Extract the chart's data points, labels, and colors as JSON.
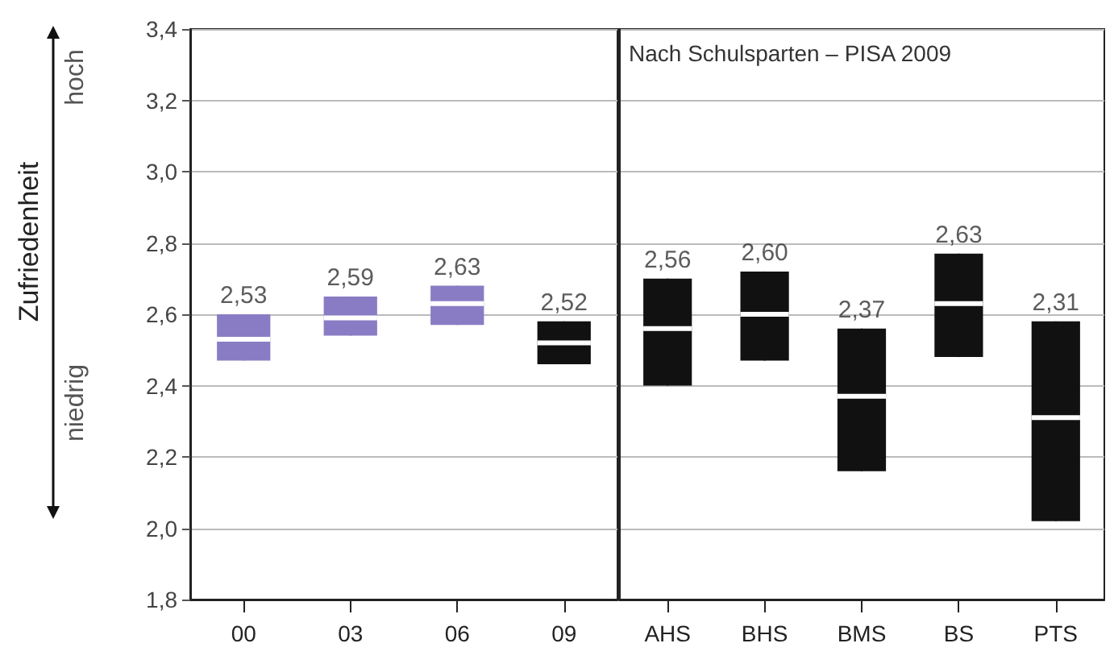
{
  "chart_data": [
    {
      "type": "box",
      "ylabel": "Zufriedenheit",
      "categories": [
        "00",
        "03",
        "06",
        "09"
      ],
      "boxes": [
        {
          "low": 2.47,
          "q1": 2.47,
          "median": 2.53,
          "q3": 2.6,
          "high": 2.6
        },
        {
          "low": 2.54,
          "q1": 2.54,
          "median": 2.59,
          "q3": 2.65,
          "high": 2.65
        },
        {
          "low": 2.57,
          "q1": 2.57,
          "median": 2.63,
          "q3": 2.68,
          "high": 2.68
        },
        {
          "low": 2.46,
          "q1": 2.46,
          "median": 2.52,
          "q3": 2.58,
          "high": 2.58
        }
      ],
      "colors": [
        "#8a7cc4",
        "#8a7cc4",
        "#8a7cc4",
        "#111111"
      ],
      "ylim": [
        1.8,
        3.4
      ],
      "yticks": [
        {
          "value": 1.8,
          "label": "1,8"
        },
        {
          "value": 2.0,
          "label": "2,0"
        },
        {
          "value": 2.2,
          "label": "2,2"
        },
        {
          "value": 2.4,
          "label": "2,4"
        },
        {
          "value": 2.6,
          "label": "2,6"
        },
        {
          "value": 2.8,
          "label": "2,8"
        },
        {
          "value": 3.0,
          "label": "3,0"
        },
        {
          "value": 3.2,
          "label": "3,2"
        },
        {
          "value": 3.4,
          "label": "3,4"
        }
      ],
      "grid": "y",
      "annotations": [
        "hoch",
        "niedrig",
        {
          "text": "2,53",
          "x": "00",
          "y": 2.6
        },
        {
          "text": "2,59",
          "x": "03",
          "y": 2.65
        },
        {
          "text": "2,63",
          "x": "06",
          "y": 2.68
        },
        {
          "text": "2,52",
          "x": "09",
          "y": 2.58
        }
      ]
    },
    {
      "type": "box",
      "title": "Nach Schulsparten – PISA 2009",
      "categories": [
        "AHS",
        "BHS",
        "BMS",
        "BS",
        "PTS"
      ],
      "boxes": [
        {
          "low": 2.4,
          "q1": 2.4,
          "median": 2.56,
          "q3": 2.7,
          "high": 2.7
        },
        {
          "low": 2.47,
          "q1": 2.47,
          "median": 2.6,
          "q3": 2.72,
          "high": 2.72
        },
        {
          "low": 2.16,
          "q1": 2.16,
          "median": 2.37,
          "q3": 2.56,
          "high": 2.56
        },
        {
          "low": 2.48,
          "q1": 2.48,
          "median": 2.63,
          "q3": 2.77,
          "high": 2.77
        },
        {
          "low": 2.02,
          "q1": 2.02,
          "median": 2.31,
          "q3": 2.58,
          "high": 2.58
        }
      ],
      "colors": [
        "#111111",
        "#111111",
        "#111111",
        "#111111",
        "#111111"
      ],
      "ylim": [
        1.8,
        3.4
      ],
      "yticks": [
        1.8,
        2.0,
        2.2,
        2.4,
        2.6,
        2.8,
        3.0,
        3.2,
        3.4
      ],
      "grid": "y",
      "tick_labels": "x",
      "annotations": [
        {
          "text": "2,56",
          "x": "AHS",
          "y": 2.7
        },
        {
          "text": "2,60",
          "x": "BHS",
          "y": 2.72
        },
        {
          "text": "2,37",
          "x": "BMS",
          "y": 2.56
        },
        {
          "text": "2,63",
          "x": "BS",
          "y": 2.77
        },
        {
          "text": "2,31",
          "x": "PTS",
          "y": 2.58
        }
      ]
    }
  ]
}
